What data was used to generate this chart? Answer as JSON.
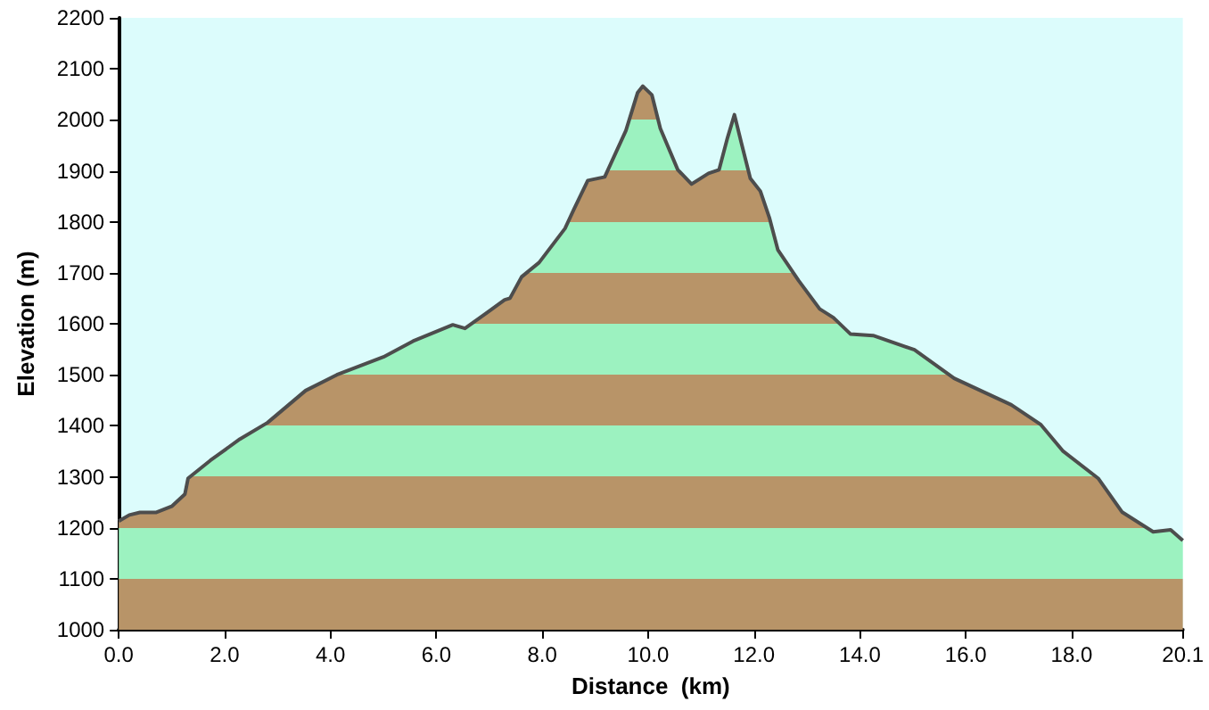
{
  "chart_data": {
    "type": "area",
    "xlabel": "Distance  (km)",
    "ylabel": "Elevation (m)",
    "x": [
      0,
      0.2,
      0.4,
      0.7,
      1.0,
      1.25,
      1.31,
      1.73,
      2.29,
      2.81,
      3.53,
      4.12,
      5.0,
      5.56,
      6.31,
      6.54,
      6.96,
      7.29,
      7.39,
      7.61,
      7.94,
      8.43,
      8.6,
      8.86,
      9.18,
      9.58,
      9.8,
      9.9,
      10.07,
      10.23,
      10.56,
      10.82,
      11.14,
      11.34,
      11.5,
      11.63,
      11.76,
      11.93,
      12.12,
      12.29,
      12.45,
      12.84,
      13.24,
      13.5,
      13.82,
      14.25,
      15.03,
      15.78,
      16.86,
      17.42,
      17.84,
      18.5,
      18.95,
      19.54,
      19.87,
      20.1
    ],
    "series": [
      {
        "color": "#9cf2c0",
        "values": [
          1213,
          1225,
          1230,
          1230,
          1242,
          1266,
          1297,
          1332,
          1374,
          1406,
          1469,
          1500,
          1535,
          1566,
          1598,
          1591,
          1622,
          1647,
          1650,
          1692,
          1720,
          1787,
          1825,
          1881,
          1888,
          1979,
          2053,
          2066,
          2049,
          1983,
          1902,
          1874,
          1895,
          1902,
          1965,
          2010,
          1955,
          1885,
          1860,
          1808,
          1745,
          1685,
          1629,
          1612,
          1580,
          1577,
          1549,
          1493,
          1441,
          1402,
          1350,
          1297,
          1231,
          1192,
          1196,
          1175
        ]
      }
    ],
    "xlim": [
      0,
      20.1
    ],
    "xticks": [
      {
        "value": 0,
        "label": "0.0"
      },
      {
        "value": 2,
        "label": "2.0"
      },
      {
        "value": 4,
        "label": "4.0"
      },
      {
        "value": 6,
        "label": "6.0"
      },
      {
        "value": 8,
        "label": "8.0"
      },
      {
        "value": 10,
        "label": "10.0"
      },
      {
        "value": 12,
        "label": "12.0"
      },
      {
        "value": 14,
        "label": "14.0"
      },
      {
        "value": 16,
        "label": "16.0"
      },
      {
        "value": 18,
        "label": "18.0"
      },
      {
        "value": 20.1,
        "label": "20.1"
      }
    ],
    "ylim": [
      1000,
      2200
    ],
    "yticks": [
      1000,
      1100,
      1200,
      1300,
      1400,
      1500,
      1600,
      1700,
      1800,
      1900,
      2000,
      2100,
      2200
    ],
    "grid": false,
    "marker": "none",
    "line_style": "solid"
  }
}
